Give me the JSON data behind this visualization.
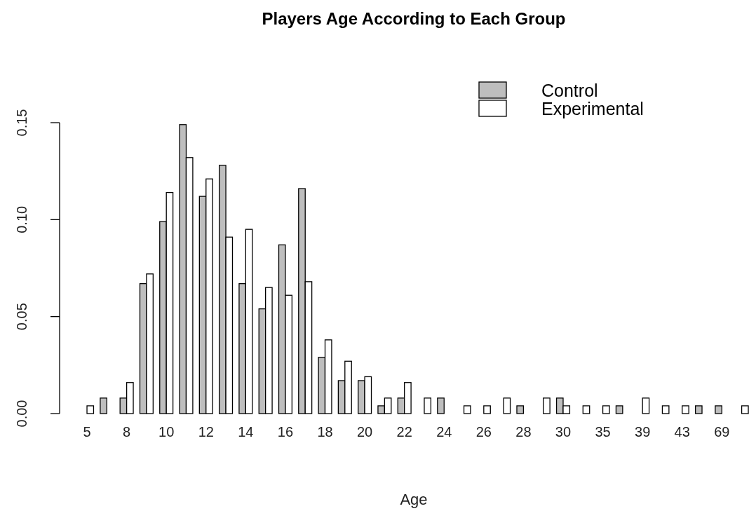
{
  "chart_data": {
    "type": "bar",
    "title": "Players Age According to Each Group",
    "xlabel": "Age",
    "categories": [
      "5",
      null,
      "8",
      null,
      "10",
      null,
      "12",
      null,
      "14",
      null,
      "16",
      null,
      "18",
      null,
      "20",
      null,
      "22",
      null,
      "24",
      null,
      "26",
      null,
      "28",
      null,
      "30",
      null,
      "35",
      null,
      "39",
      null,
      "43",
      null,
      "69",
      null
    ],
    "series": [
      {
        "name": "Control",
        "color": "#bebebe",
        "values": [
          0,
          0.008,
          0.008,
          0.067,
          0.099,
          0.149,
          0.112,
          0.128,
          0.067,
          0.054,
          0.087,
          0.116,
          0.029,
          0.017,
          0.017,
          0.004,
          0.008,
          0,
          0.008,
          0,
          0,
          0,
          0.004,
          0,
          0.008,
          0,
          0,
          0.004,
          0,
          0,
          0,
          0.004,
          0.004,
          0
        ]
      },
      {
        "name": "Experimental",
        "color": "#ffffff",
        "values": [
          0.004,
          0,
          0.016,
          0.072,
          0.114,
          0.132,
          0.121,
          0.091,
          0.095,
          0.065,
          0.061,
          0.068,
          0.038,
          0.027,
          0.019,
          0.008,
          0.016,
          0.008,
          0,
          0.004,
          0.004,
          0.008,
          0,
          0.008,
          0.004,
          0.004,
          0.004,
          0,
          0.008,
          0.004,
          0.004,
          0,
          0,
          0.004
        ]
      }
    ],
    "ylim": [
      0,
      0.15
    ],
    "yticks": [
      {
        "value": 0,
        "label": "0.00"
      },
      {
        "value": 0.05,
        "label": "0.05"
      },
      {
        "value": 0.1,
        "label": "0.10"
      },
      {
        "value": 0.15,
        "label": "0.15"
      }
    ],
    "grid": false,
    "legend": "top right"
  }
}
